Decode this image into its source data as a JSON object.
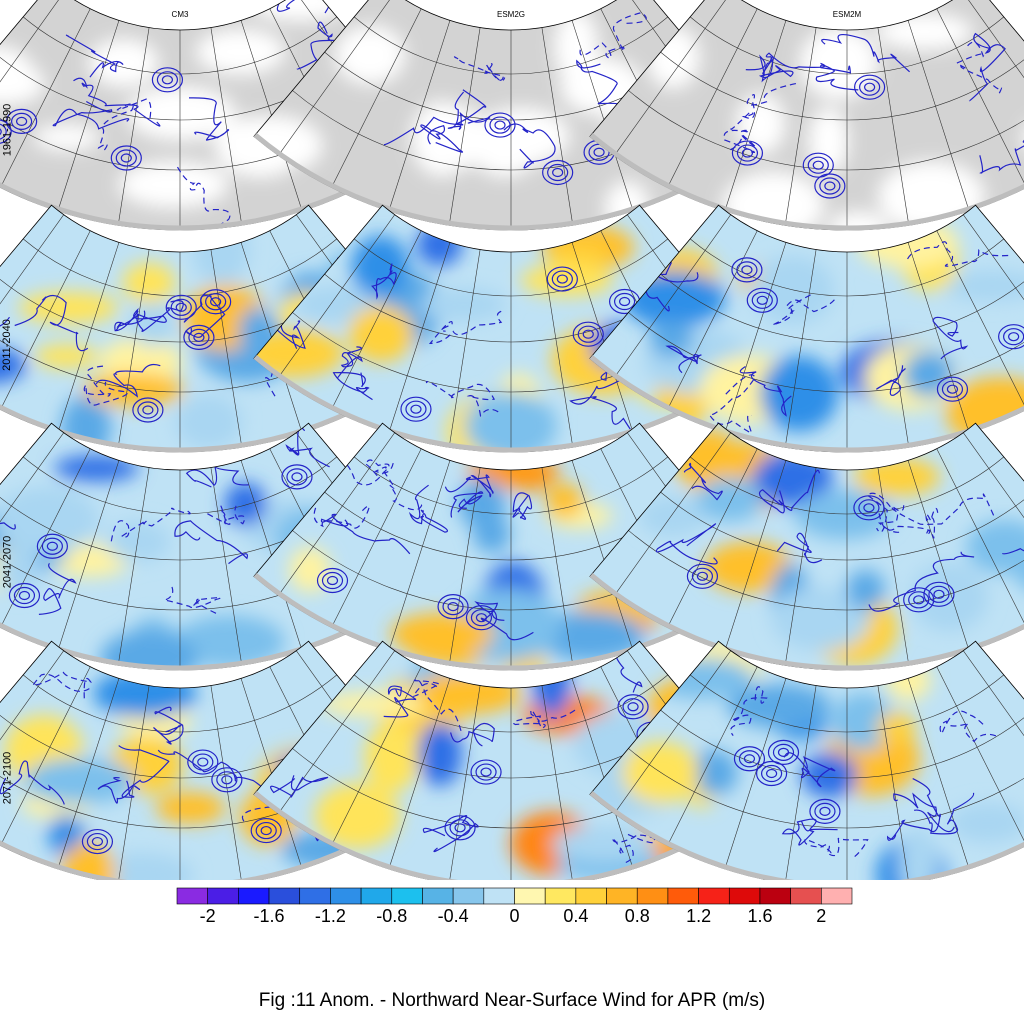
{
  "columns": [
    "CM3",
    "ESM2G",
    "ESM2M"
  ],
  "rows": [
    "1961-1990",
    "2011-2040",
    "2041-2070",
    "2071-2100"
  ],
  "colorbar": {
    "colors": [
      "#8a2be2",
      "#4b1ee6",
      "#1a1aff",
      "#2a4fdc",
      "#2f6fe6",
      "#2e8fe8",
      "#20a8ea",
      "#1cc0ee",
      "#57b3e6",
      "#87c6ec",
      "#bfe2f5",
      "#fff7b0",
      "#ffe860",
      "#ffd13a",
      "#ffb425",
      "#ff8f14",
      "#ff5b0a",
      "#f62218",
      "#de0a0a",
      "#bb0010",
      "#e65050",
      "#ffb0b0"
    ],
    "labels": [
      "-2",
      "-1.6",
      "-1.2",
      "-0.8",
      "-0.4",
      "0",
      "0.4",
      "0.8",
      "1.2",
      "1.6",
      "2"
    ]
  },
  "caption": "Fig :11  Anom.  - Northward Near-Surface Wind for APR (m/s)"
}
